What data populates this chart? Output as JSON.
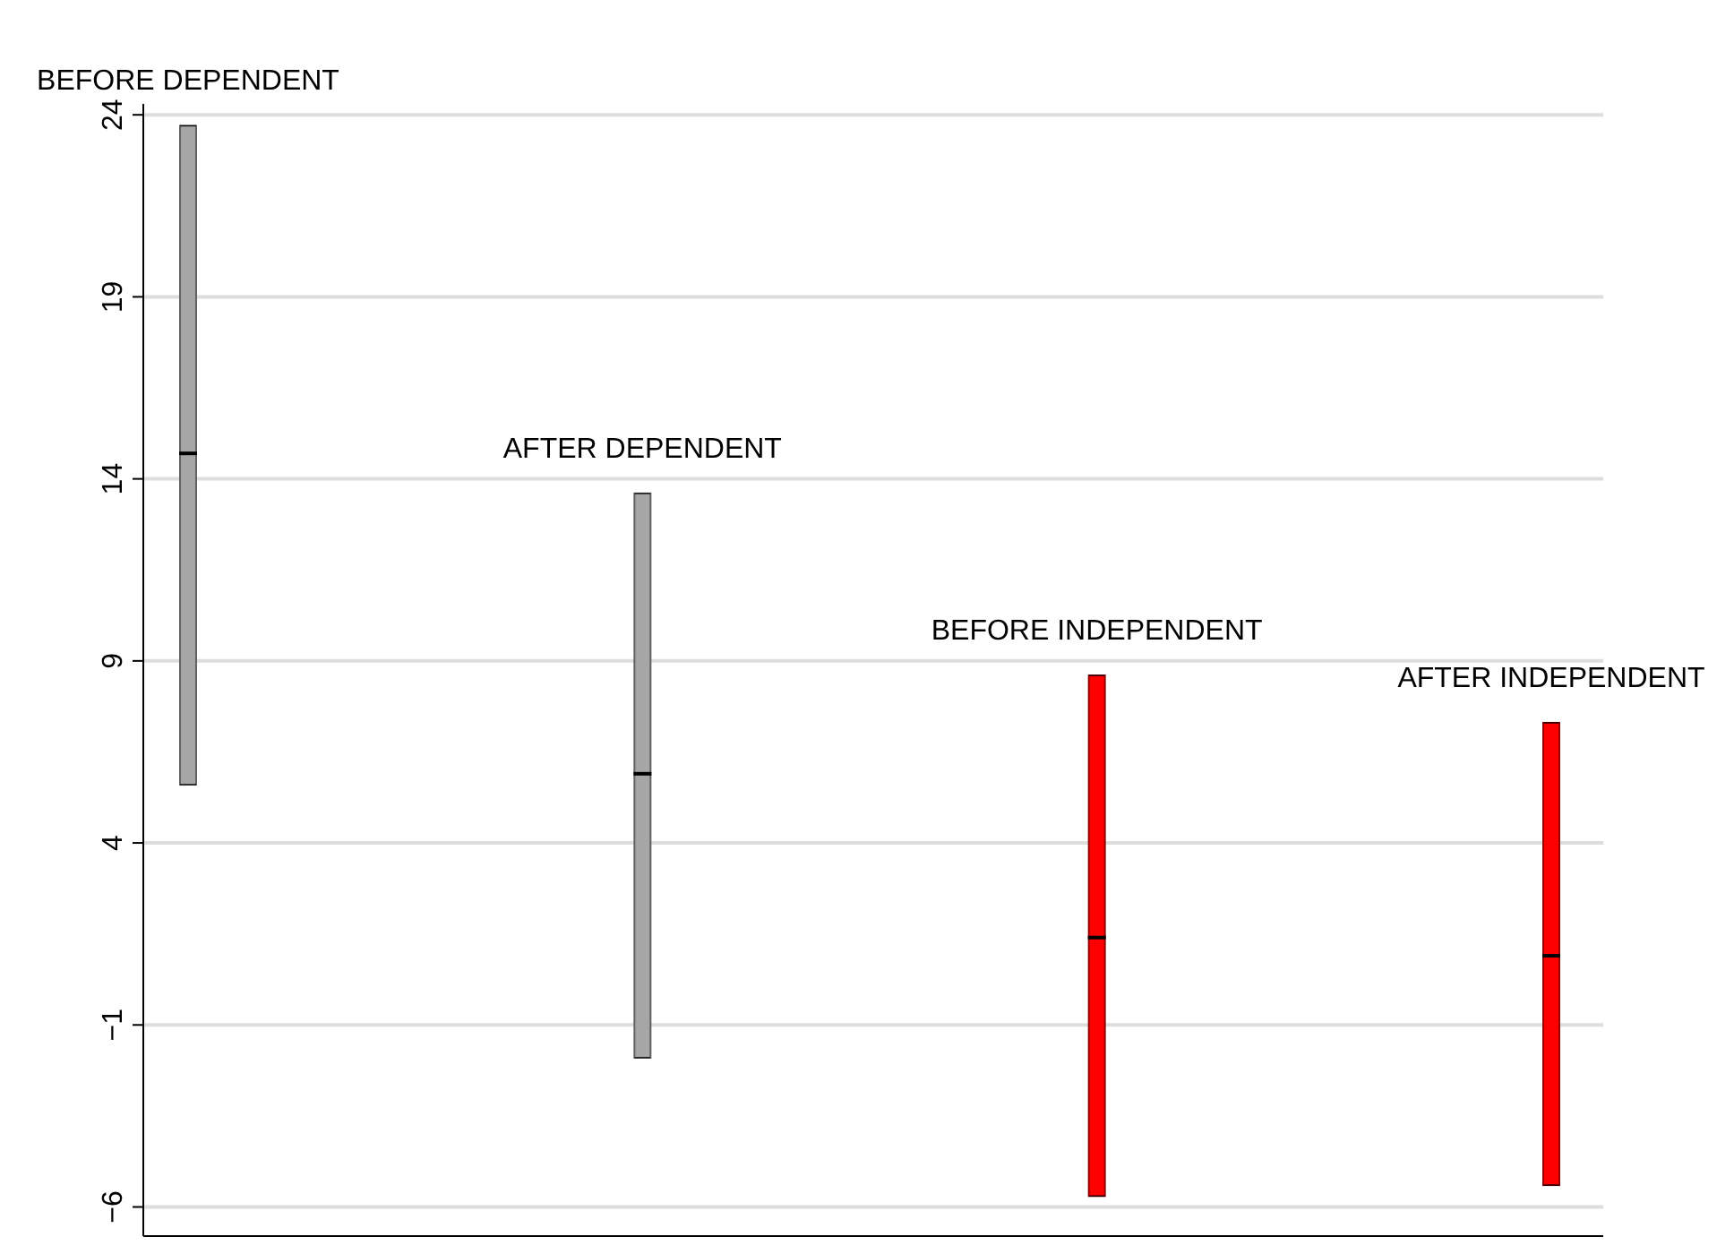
{
  "chart_data": {
    "type": "box",
    "categories": [
      "BEFORE DEPENDENT",
      "AFTER DEPENDENT",
      "BEFORE INDEPENDENT",
      "AFTER INDEPENDENT"
    ],
    "boxes": [
      {
        "low": 5.6,
        "q1": 5.6,
        "median": 14.7,
        "q3": 23.7,
        "high": 23.7
      },
      {
        "low": -1.9,
        "q1": -1.9,
        "median": 5.9,
        "q3": 13.6,
        "high": 13.6
      },
      {
        "low": -5.7,
        "q1": -5.7,
        "median": 1.4,
        "q3": 8.6,
        "high": 8.6
      },
      {
        "low": -5.4,
        "q1": -5.4,
        "median": 0.9,
        "q3": 7.3,
        "high": 7.3
      }
    ],
    "colors": [
      "#a6a6a6",
      "#a6a6a6",
      "#ff0000",
      "#ff0000"
    ],
    "ylim": [
      -6.8,
      24.3
    ],
    "yticks": [
      -6,
      -1,
      4,
      9,
      14,
      19,
      24
    ],
    "grid": "y"
  }
}
